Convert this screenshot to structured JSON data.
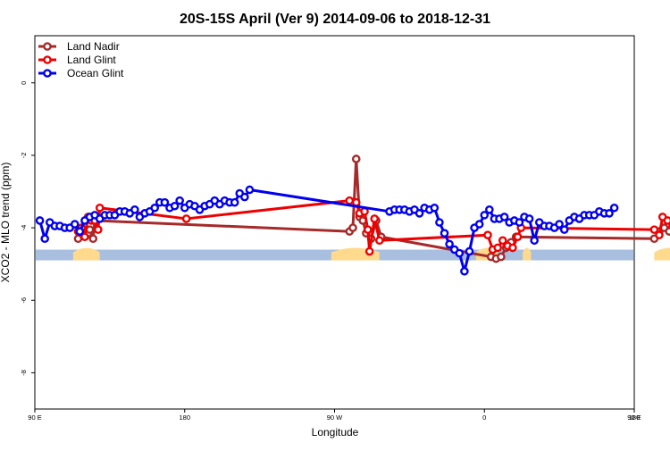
{
  "chart_data": {
    "type": "line",
    "title": "20S-15S April (Ver 9)   2014-09-06 to 2018-12-31",
    "xlabel": "Longitude",
    "ylabel": "XCO2 - MLO trend (ppm)",
    "x_range": [
      90,
      450
    ],
    "ylim": [
      -9,
      1.3
    ],
    "x_ticks": [
      {
        "value": 90,
        "label": "90 E"
      },
      {
        "value": 180,
        "label": "180"
      },
      {
        "value": 270,
        "label": "90 W"
      },
      {
        "value": 360,
        "label": "0"
      },
      {
        "value": 450,
        "label": "90 E"
      },
      {
        "value": 540,
        "label": "180"
      }
    ],
    "y_ticks": [
      0,
      -2,
      -4,
      -6,
      -8
    ],
    "grid": false,
    "legend_position": "top-left",
    "series": [
      {
        "name": "Land Nadir",
        "color": "#a52a2a",
        "points": [
          [
            116,
            -4.3
          ],
          [
            119,
            -4.2
          ],
          [
            122,
            -4.15
          ],
          [
            123,
            -4.05
          ],
          [
            125,
            -4.3
          ],
          [
            126,
            -3.8
          ],
          [
            279,
            -4.1
          ],
          [
            281,
            -4.0
          ],
          [
            283,
            -2.1
          ],
          [
            285,
            -3.7
          ],
          [
            287,
            -3.8
          ],
          [
            289,
            -4.15
          ],
          [
            292,
            -4.3
          ],
          [
            295,
            -3.8
          ],
          [
            298,
            -4.25
          ],
          [
            364,
            -4.8
          ],
          [
            367,
            -4.85
          ],
          [
            370,
            -4.8
          ],
          [
            373,
            -4.55
          ],
          [
            376,
            -4.4
          ],
          [
            379,
            -4.25
          ],
          [
            462,
            -4.3
          ],
          [
            465,
            -4.1
          ],
          [
            468,
            -4.0
          ],
          [
            471,
            -4.1
          ],
          [
            474,
            -4.3
          ],
          [
            477,
            -3.85
          ]
        ]
      },
      {
        "name": "Land Glint",
        "color": "#ee0000",
        "points": [
          [
            116,
            -4.1
          ],
          [
            118,
            -4.0
          ],
          [
            120,
            -4.25
          ],
          [
            122,
            -3.7
          ],
          [
            124,
            -3.8
          ],
          [
            126,
            -3.8
          ],
          [
            128,
            -4.05
          ],
          [
            129,
            -3.45
          ],
          [
            181,
            -3.75
          ],
          [
            279,
            -3.25
          ],
          [
            283,
            -3.3
          ],
          [
            285,
            -3.6
          ],
          [
            288,
            -3.55
          ],
          [
            290,
            -4.05
          ],
          [
            291,
            -4.65
          ],
          [
            294,
            -3.75
          ],
          [
            297,
            -4.35
          ],
          [
            362,
            -4.2
          ],
          [
            365,
            -4.6
          ],
          [
            368,
            -4.55
          ],
          [
            371,
            -4.35
          ],
          [
            374,
            -4.5
          ],
          [
            377,
            -4.55
          ],
          [
            380,
            -4.25
          ],
          [
            382,
            -4.0
          ],
          [
            462,
            -4.05
          ],
          [
            465,
            -4.2
          ],
          [
            467,
            -3.7
          ],
          [
            470,
            -3.8
          ],
          [
            473,
            -3.95
          ],
          [
            476,
            -4.05
          ],
          [
            479,
            -3.45
          ]
        ]
      },
      {
        "name": "Ocean Glint",
        "color": "#0000ee",
        "points": [
          [
            93,
            -3.8
          ],
          [
            96,
            -4.3
          ],
          [
            99,
            -3.85
          ],
          [
            102,
            -3.95
          ],
          [
            105,
            -3.95
          ],
          [
            108,
            -4.0
          ],
          [
            111,
            -4.0
          ],
          [
            114,
            -3.9
          ],
          [
            117,
            -4.1
          ],
          [
            120,
            -3.8
          ],
          [
            123,
            -3.7
          ],
          [
            126,
            -3.65
          ],
          [
            129,
            -3.75
          ],
          [
            132,
            -3.65
          ],
          [
            135,
            -3.65
          ],
          [
            138,
            -3.65
          ],
          [
            141,
            -3.55
          ],
          [
            144,
            -3.55
          ],
          [
            147,
            -3.6
          ],
          [
            150,
            -3.5
          ],
          [
            153,
            -3.7
          ],
          [
            156,
            -3.6
          ],
          [
            159,
            -3.55
          ],
          [
            162,
            -3.45
          ],
          [
            165,
            -3.3
          ],
          [
            168,
            -3.3
          ],
          [
            171,
            -3.45
          ],
          [
            174,
            -3.4
          ],
          [
            177,
            -3.25
          ],
          [
            180,
            -3.45
          ],
          [
            183,
            -3.35
          ],
          [
            186,
            -3.4
          ],
          [
            189,
            -3.5
          ],
          [
            192,
            -3.4
          ],
          [
            195,
            -3.35
          ],
          [
            198,
            -3.25
          ],
          [
            201,
            -3.35
          ],
          [
            204,
            -3.25
          ],
          [
            207,
            -3.3
          ],
          [
            210,
            -3.3
          ],
          [
            213,
            -3.05
          ],
          [
            216,
            -3.15
          ],
          [
            219,
            -2.95
          ],
          [
            303,
            -3.55
          ],
          [
            306,
            -3.5
          ],
          [
            309,
            -3.5
          ],
          [
            312,
            -3.5
          ],
          [
            315,
            -3.55
          ],
          [
            318,
            -3.5
          ],
          [
            321,
            -3.6
          ],
          [
            324,
            -3.45
          ],
          [
            327,
            -3.5
          ],
          [
            330,
            -3.45
          ],
          [
            333,
            -3.85
          ],
          [
            336,
            -4.15
          ],
          [
            339,
            -4.45
          ],
          [
            342,
            -4.6
          ],
          [
            345,
            -4.7
          ],
          [
            348,
            -5.2
          ],
          [
            351,
            -4.65
          ],
          [
            354,
            -4.0
          ],
          [
            357,
            -3.9
          ],
          [
            360,
            -3.65
          ],
          [
            363,
            -3.5
          ],
          [
            366,
            -3.75
          ],
          [
            369,
            -3.75
          ],
          [
            372,
            -3.7
          ],
          [
            375,
            -3.85
          ],
          [
            378,
            -3.8
          ],
          [
            381,
            -3.85
          ],
          [
            384,
            -3.7
          ],
          [
            387,
            -3.75
          ],
          [
            390,
            -4.35
          ],
          [
            393,
            -3.85
          ],
          [
            396,
            -3.95
          ],
          [
            399,
            -3.95
          ],
          [
            402,
            -4.0
          ],
          [
            405,
            -3.9
          ],
          [
            408,
            -4.05
          ],
          [
            411,
            -3.8
          ],
          [
            414,
            -3.7
          ],
          [
            417,
            -3.75
          ],
          [
            420,
            -3.65
          ],
          [
            423,
            -3.65
          ],
          [
            426,
            -3.65
          ],
          [
            429,
            -3.55
          ],
          [
            432,
            -3.6
          ],
          [
            435,
            -3.6
          ],
          [
            438,
            -3.45
          ]
        ]
      }
    ],
    "band": {
      "y": -4.75,
      "color": "#a8bfdf",
      "land_color": "#ffd98c",
      "land_segments": [
        [
          113,
          129
        ],
        [
          268,
          297
        ],
        [
          355,
          368
        ],
        [
          383,
          388
        ],
        [
          462,
          481
        ]
      ]
    }
  }
}
